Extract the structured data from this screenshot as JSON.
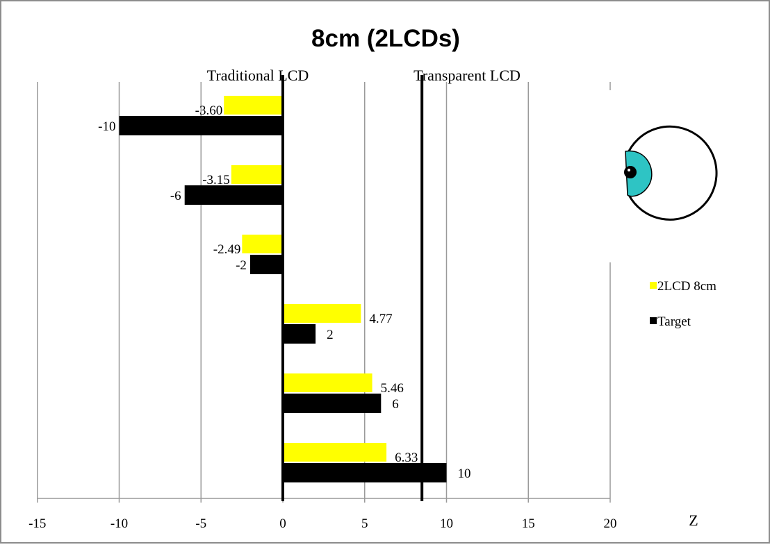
{
  "chart_data": {
    "type": "bar",
    "orientation": "horizontal",
    "title": "8cm (2LCDs)",
    "xlabel": "Z",
    "xlim": [
      -15,
      20
    ],
    "xticks": [
      -15,
      -10,
      -5,
      0,
      5,
      10,
      15,
      20
    ],
    "grid": true,
    "legend_position": "right",
    "series": [
      {
        "name": "2LCD 8cm",
        "color": "#ffff00",
        "values": [
          -3.6,
          -3.15,
          -2.49,
          4.77,
          5.46,
          6.33
        ],
        "labels": [
          "-3.60",
          "-3.15",
          "-2.49",
          "4.77",
          "5.46",
          "6.33"
        ]
      },
      {
        "name": "Target",
        "color": "#000000",
        "values": [
          -10,
          -6,
          -2,
          2,
          6,
          10
        ],
        "labels": [
          "-10",
          "-6",
          "-2",
          "2",
          "6",
          "10"
        ]
      }
    ],
    "reference_lines": [
      {
        "x": 0,
        "label": "Traditional LCD"
      },
      {
        "x": 8.5,
        "label": "Transparent LCD"
      }
    ],
    "annotation_icon": "eye-icon"
  }
}
